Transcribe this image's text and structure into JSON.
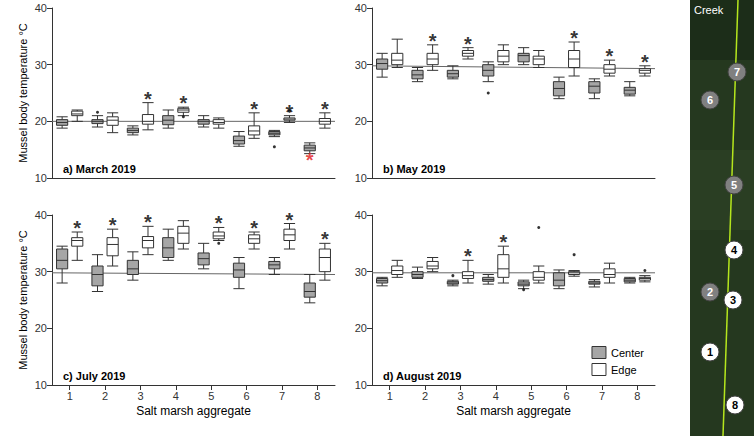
{
  "chart_data": [
    {
      "type": "boxplot",
      "title": "a) March 2019",
      "categories": [
        "1",
        "2",
        "3",
        "4",
        "5",
        "6",
        "7",
        "8"
      ],
      "series": [
        {
          "name": "Center",
          "color": "#a6a6a6",
          "values": [
            [
              18.8,
              19.3,
              19.8,
              20.3,
              20.8
            ],
            [
              19,
              19.6,
              20,
              20.3,
              21
            ],
            [
              17.6,
              18,
              18.4,
              18.8,
              19.2
            ],
            [
              18.8,
              19.4,
              20.2,
              21,
              22
            ],
            [
              19,
              19.5,
              20,
              20.3,
              21
            ],
            [
              15.6,
              16,
              16.6,
              17.4,
              18.2
            ],
            [
              17.3,
              17.6,
              17.9,
              18.2,
              18.4
            ],
            [
              14.3,
              14.8,
              15.3,
              15.8,
              16.2
            ]
          ],
          "outliers": [
            [
              "2",
              21.6
            ],
            [
              "7",
              15.5
            ]
          ]
        },
        {
          "name": "Edge",
          "color": "#ffffff",
          "values": [
            [
              20,
              21,
              21.3,
              21.8,
              22
            ],
            [
              18,
              19.3,
              20.2,
              20.8,
              21.5
            ],
            [
              18.5,
              19.5,
              20,
              21.2,
              23.3
            ],
            [
              21,
              21.6,
              22,
              22.3,
              22.5
            ],
            [
              18.8,
              19.5,
              19.8,
              20.3,
              20.6
            ],
            [
              17,
              17.6,
              18.3,
              19.2,
              21.5
            ],
            [
              19.8,
              20.2,
              20.4,
              20.6,
              21
            ],
            [
              18.8,
              19.5,
              20,
              20.5,
              21.5
            ]
          ],
          "outliers": [
            [
              "4",
              20.8
            ],
            [
              "7",
              21.8
            ]
          ]
        }
      ],
      "annotations": [
        {
          "category": "3",
          "series": "Edge",
          "text": "*",
          "color": "#000000"
        },
        {
          "category": "4",
          "series": "Edge",
          "text": "*",
          "color": "#000000"
        },
        {
          "category": "6",
          "series": "Edge",
          "text": "*",
          "color": "#000000"
        },
        {
          "category": "7",
          "series": "Edge",
          "text": "*",
          "color": "#000000"
        },
        {
          "category": "8",
          "series": "Edge",
          "text": "*",
          "color": "#000000"
        },
        {
          "category": "8",
          "series": "Center",
          "text": "*",
          "color": "#e31a1c"
        }
      ],
      "reference_line": [
        20,
        20
      ],
      "ylim": [
        10,
        40
      ],
      "yticks": [
        10,
        20,
        30,
        40
      ],
      "y_label": "Mussel body temperature °C",
      "tick_labels": "y",
      "grid": false
    },
    {
      "type": "boxplot",
      "title": "b) May 2019",
      "categories": [
        "1",
        "2",
        "3",
        "4",
        "5",
        "6",
        "7",
        "8"
      ],
      "series": [
        {
          "name": "Center",
          "color": "#a6a6a6",
          "values": [
            [
              27.8,
              29.2,
              30.2,
              31,
              32
            ],
            [
              27,
              27.5,
              28.2,
              29,
              29.5
            ],
            [
              27.5,
              27.8,
              28.4,
              29,
              29.8
            ],
            [
              27,
              28,
              29,
              30,
              30.5
            ],
            [
              30,
              30.5,
              31.6,
              32,
              33
            ],
            [
              24,
              24.5,
              25.8,
              27,
              27.8
            ],
            [
              24,
              25,
              26.2,
              27,
              27.5
            ],
            [
              24.5,
              24.8,
              25.5,
              26,
              27
            ]
          ],
          "outliers": [
            [
              "4",
              25
            ]
          ]
        },
        {
          "name": "Edge",
          "color": "#ffffff",
          "values": [
            [
              29.5,
              30,
              30.8,
              32,
              34.5
            ],
            [
              29,
              30,
              31,
              32,
              33.5
            ],
            [
              31,
              31.5,
              32,
              32.5,
              33
            ],
            [
              30,
              30.5,
              31.5,
              32.5,
              33.5
            ],
            [
              29.5,
              30,
              31,
              31.5,
              32.5
            ],
            [
              28,
              29.5,
              31,
              32.5,
              34
            ],
            [
              28,
              28.5,
              29.2,
              30,
              30.8
            ],
            [
              28,
              28.5,
              29,
              29.3,
              29.8
            ]
          ],
          "outliers": []
        }
      ],
      "annotations": [
        {
          "category": "2",
          "series": "Edge",
          "text": "*",
          "color": "#000000"
        },
        {
          "category": "3",
          "series": "Edge",
          "text": "*",
          "color": "#000000"
        },
        {
          "category": "6",
          "series": "Edge",
          "text": "*",
          "color": "#000000"
        },
        {
          "category": "7",
          "series": "Edge",
          "text": "*",
          "color": "#000000"
        },
        {
          "category": "8",
          "series": "Edge",
          "text": "*",
          "color": "#000000"
        }
      ],
      "reference_line": [
        29.8,
        29.3
      ],
      "ylim": [
        10,
        40
      ],
      "yticks": [
        10,
        20,
        30,
        40
      ],
      "tick_labels": "y",
      "grid": false
    },
    {
      "type": "boxplot",
      "title": "c) July 2019",
      "categories": [
        "1",
        "2",
        "3",
        "4",
        "5",
        "6",
        "7",
        "8"
      ],
      "series": [
        {
          "name": "Center",
          "color": "#a6a6a6",
          "values": [
            [
              28,
              30.5,
              32,
              34,
              34.5
            ],
            [
              26.5,
              27.5,
              29.5,
              31,
              33
            ],
            [
              28.5,
              29.5,
              30.5,
              32,
              33.5
            ],
            [
              32,
              32.5,
              34.2,
              36,
              37.5
            ],
            [
              30.5,
              31.2,
              32.3,
              33.3,
              35
            ],
            [
              27,
              29,
              30.3,
              31.5,
              32.5
            ],
            [
              29.5,
              30.5,
              31.2,
              31.8,
              32.5
            ],
            [
              24.5,
              25.5,
              26.5,
              28,
              29.5
            ]
          ],
          "outliers": []
        },
        {
          "name": "Edge",
          "color": "#ffffff",
          "values": [
            [
              32,
              34.5,
              35.5,
              36,
              37
            ],
            [
              31,
              32.8,
              34.8,
              36,
              37.5
            ],
            [
              33,
              34.2,
              35.5,
              36.2,
              38
            ],
            [
              34,
              35,
              36.8,
              38,
              39
            ],
            [
              35.5,
              35.8,
              36.3,
              37,
              37.8
            ],
            [
              34,
              35,
              35.8,
              36.5,
              37
            ],
            [
              34,
              35.5,
              36.5,
              37.5,
              38.5
            ],
            [
              28.5,
              30,
              32.5,
              34,
              35
            ]
          ],
          "outliers": [
            [
              "5",
              35
            ]
          ]
        }
      ],
      "annotations": [
        {
          "category": "1",
          "series": "Edge",
          "text": "*",
          "color": "#000000"
        },
        {
          "category": "2",
          "series": "Edge",
          "text": "*",
          "color": "#000000"
        },
        {
          "category": "3",
          "series": "Edge",
          "text": "*",
          "color": "#000000"
        },
        {
          "category": "5",
          "series": "Edge",
          "text": "*",
          "color": "#000000"
        },
        {
          "category": "6",
          "series": "Edge",
          "text": "*",
          "color": "#000000"
        },
        {
          "category": "7",
          "series": "Edge",
          "text": "*",
          "color": "#000000"
        },
        {
          "category": "8",
          "series": "Edge",
          "text": "*",
          "color": "#000000"
        }
      ],
      "reference_line": [
        29.8,
        29.5
      ],
      "ylim": [
        10,
        40
      ],
      "yticks": [
        10,
        20,
        30,
        40
      ],
      "x_label": "Salt marsh aggregate",
      "y_label": "Mussel body temperature °C",
      "grid": false
    },
    {
      "type": "boxplot",
      "title": "d) August 2019",
      "categories": [
        "1",
        "2",
        "3",
        "4",
        "5",
        "6",
        "7",
        "8"
      ],
      "series": [
        {
          "name": "Center",
          "color": "#a6a6a6",
          "values": [
            [
              27.5,
              28,
              28.4,
              28.8,
              29
            ],
            [
              28.8,
              29,
              29.5,
              30,
              30.8
            ],
            [
              27.5,
              27.8,
              28,
              28.3,
              28.5
            ],
            [
              27.8,
              28.3,
              28.6,
              29,
              29.5
            ],
            [
              27,
              27.5,
              27.8,
              28.2,
              28.5
            ],
            [
              27,
              27.5,
              28.5,
              29.8,
              30.3
            ],
            [
              27.3,
              27.8,
              28,
              28.3,
              28.6
            ],
            [
              28,
              28.2,
              28.5,
              28.8,
              29
            ]
          ],
          "outliers": [
            [
              "3",
              29.3
            ],
            [
              "5",
              26.8
            ]
          ]
        },
        {
          "name": "Edge",
          "color": "#ffffff",
          "values": [
            [
              29,
              29.5,
              30.2,
              31,
              32
            ],
            [
              30,
              30.5,
              31,
              31.8,
              32.5
            ],
            [
              28,
              28.8,
              29.3,
              30,
              32
            ],
            [
              28,
              29,
              30.5,
              33,
              34.5
            ],
            [
              28,
              28.5,
              29,
              30,
              31
            ],
            [
              29.2,
              29.5,
              29.8,
              30,
              30.2
            ],
            [
              28,
              29,
              29.5,
              30.5,
              31.5
            ],
            [
              28.2,
              28.5,
              28.8,
              29,
              29.3
            ]
          ],
          "outliers": [
            [
              "5",
              37.8
            ],
            [
              "6",
              33
            ],
            [
              "8",
              30.2
            ]
          ]
        }
      ],
      "annotations": [
        {
          "category": "3",
          "series": "Edge",
          "text": "*",
          "color": "#000000"
        },
        {
          "category": "4",
          "series": "Edge",
          "text": "*",
          "color": "#000000"
        }
      ],
      "reference_line": [
        29.8,
        29.8
      ],
      "ylim": [
        10,
        40
      ],
      "yticks": [
        10,
        20,
        30,
        40
      ],
      "x_label": "Salt marsh aggregate",
      "legend": "bottom-right",
      "grid": false
    }
  ],
  "map": {
    "label": "Creek",
    "sites": [
      {
        "label": "7",
        "color": "#808080"
      },
      {
        "label": "6",
        "color": "#808080"
      },
      {
        "label": "5",
        "color": "#808080"
      },
      {
        "label": "4",
        "color": "#ffffff"
      },
      {
        "label": "2",
        "color": "#808080"
      },
      {
        "label": "3",
        "color": "#ffffff"
      },
      {
        "label": "1",
        "color": "#ffffff"
      },
      {
        "label": "8",
        "color": "#ffffff"
      }
    ]
  }
}
